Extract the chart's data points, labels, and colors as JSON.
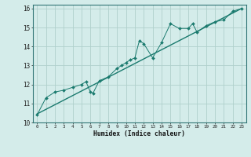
{
  "xlabel": "Humidex (Indice chaleur)",
  "bg_color": "#d4ecea",
  "grid_color": "#b0d0cc",
  "line_color": "#1a7a6e",
  "trend_color": "#1a7a6e",
  "xlim": [
    -0.5,
    23.5
  ],
  "ylim": [
    10,
    16.2
  ],
  "xticks": [
    0,
    1,
    2,
    3,
    4,
    5,
    6,
    7,
    8,
    9,
    10,
    11,
    12,
    13,
    14,
    15,
    16,
    17,
    18,
    19,
    20,
    21,
    22,
    23
  ],
  "yticks": [
    10,
    11,
    12,
    13,
    14,
    15,
    16
  ],
  "scatter_x": [
    0,
    1,
    2,
    3,
    4,
    5,
    5.5,
    6,
    6.3,
    7,
    8,
    9,
    9.5,
    10,
    10.5,
    11,
    11.5,
    12,
    13,
    14,
    15,
    16,
    17,
    17.5,
    18,
    19,
    20,
    21,
    22,
    23
  ],
  "scatter_y": [
    10.4,
    11.3,
    11.6,
    11.7,
    11.85,
    12.0,
    12.15,
    11.6,
    11.55,
    12.2,
    12.4,
    12.85,
    13.0,
    13.15,
    13.3,
    13.4,
    14.3,
    14.15,
    13.4,
    14.2,
    15.2,
    14.95,
    14.95,
    15.2,
    14.75,
    15.1,
    15.3,
    15.4,
    15.85,
    16.0
  ],
  "trend_x": [
    0,
    23
  ],
  "trend_y": [
    10.45,
    16.0
  ]
}
